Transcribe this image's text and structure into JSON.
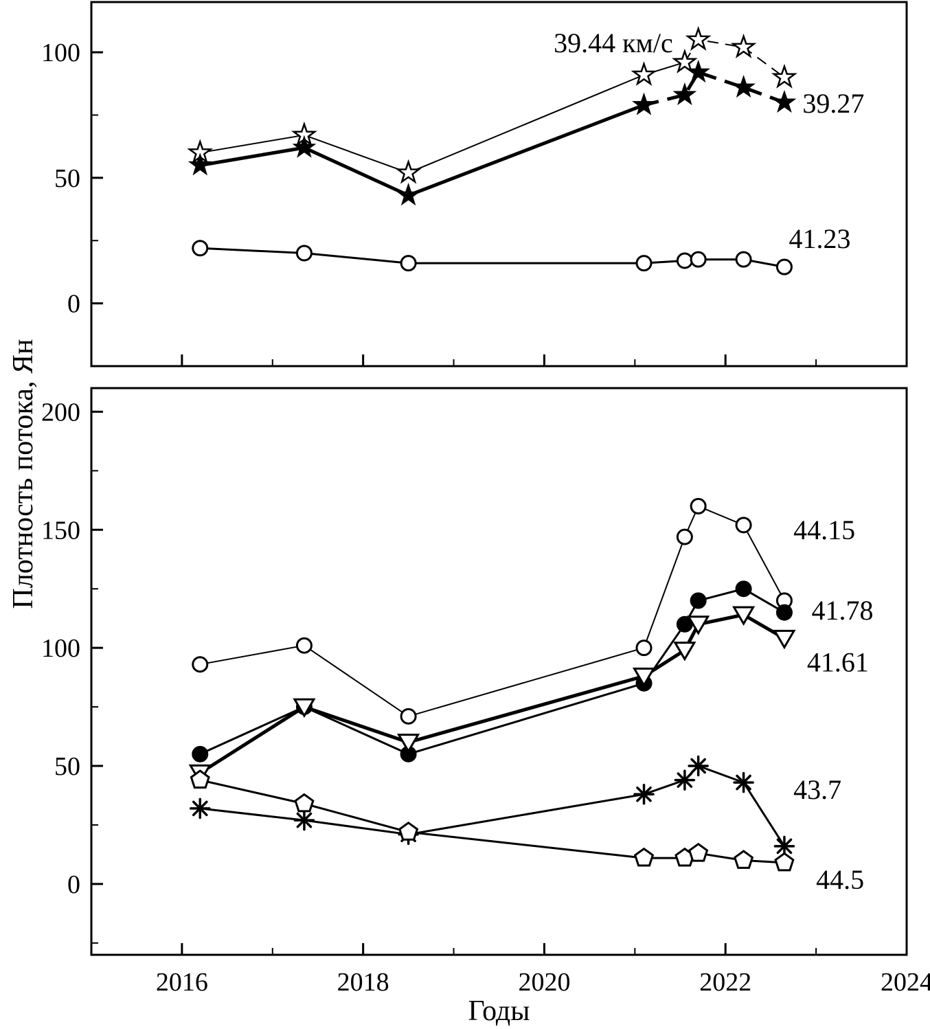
{
  "figure": {
    "xlabel": "Годы",
    "ylabel": "Плотность потока, Ян",
    "background": "#ffffff",
    "ink": "#000000"
  },
  "chart_data": [
    {
      "type": "line",
      "panel": "top",
      "x": [
        2016.2,
        2017.35,
        2018.5,
        2021.1,
        2021.55,
        2021.7,
        2022.2,
        2022.65
      ],
      "xlim": [
        2015,
        2024
      ],
      "ylim": [
        -25,
        120
      ],
      "yticks": [
        0,
        50,
        100
      ],
      "ytick_minor_step": 25,
      "xticks": [
        2016,
        2018,
        2020,
        2022,
        2024
      ],
      "xtick_minor_step": 1,
      "xtick_labels_visible": false,
      "grid": false,
      "series": [
        {
          "name": "39.44 км/с",
          "marker": "star-open",
          "line_width": 2,
          "dash_from": 4,
          "values": [
            60,
            67,
            52,
            91,
            96,
            105,
            102,
            90
          ]
        },
        {
          "name": "39.27",
          "marker": "star-filled",
          "line_width": 5,
          "dash_from": 3,
          "values": [
            55,
            62,
            43,
            79,
            83,
            92,
            86,
            80
          ]
        },
        {
          "name": "41.23",
          "marker": "circle-open",
          "line_width": 3,
          "dash_from": null,
          "values": [
            22,
            20,
            16,
            16,
            17,
            17.5,
            17.5,
            14.5
          ]
        }
      ],
      "annotations": [
        {
          "text": "39.44 км/с",
          "x": 2021.42,
          "y": 100,
          "anchor": "end"
        },
        {
          "text": "39.27",
          "x": 2022.85,
          "y": 76,
          "anchor": "start"
        },
        {
          "text": "41.23",
          "x": 2022.7,
          "y": 22,
          "anchor": "start"
        }
      ]
    },
    {
      "type": "line",
      "panel": "bottom",
      "x": [
        2016.2,
        2017.35,
        2018.5,
        2021.1,
        2021.55,
        2021.7,
        2022.2,
        2022.65
      ],
      "xlim": [
        2015,
        2024
      ],
      "ylim": [
        -30,
        210
      ],
      "yticks": [
        0,
        50,
        100,
        150,
        200
      ],
      "ytick_minor_step": 25,
      "xticks": [
        2016,
        2018,
        2020,
        2022,
        2024
      ],
      "xtick_minor_step": 1,
      "xtick_labels_visible": true,
      "grid": false,
      "series": [
        {
          "name": "44.15",
          "marker": "circle-open",
          "line_width": 2,
          "dash_from": null,
          "values": [
            93,
            101,
            71,
            100,
            147,
            160,
            152,
            120
          ]
        },
        {
          "name": "41.78",
          "marker": "circle-filled",
          "line_width": 3,
          "dash_from": null,
          "values": [
            55,
            75,
            55,
            85,
            110,
            120,
            125,
            115
          ]
        },
        {
          "name": "41.61",
          "marker": "triangle-open",
          "line_width": 5,
          "dash_from": null,
          "values": [
            47,
            75,
            60,
            88,
            99,
            110,
            114,
            104
          ]
        },
        {
          "name": "43.7",
          "marker": "asterisk",
          "line_width": 3,
          "dash_from": null,
          "values": [
            32,
            27,
            21,
            38,
            44,
            50,
            43,
            16
          ]
        },
        {
          "name": "44.5",
          "marker": "pentagon-open",
          "line_width": 3,
          "dash_from": null,
          "values": [
            44,
            34,
            22,
            11,
            11,
            13,
            10,
            9
          ]
        }
      ],
      "annotations": [
        {
          "text": "44.15",
          "x": 2022.75,
          "y": 146,
          "anchor": "start"
        },
        {
          "text": "41.78",
          "x": 2022.95,
          "y": 112,
          "anchor": "start"
        },
        {
          "text": "41.61",
          "x": 2022.9,
          "y": 90,
          "anchor": "start"
        },
        {
          "text": "43.7",
          "x": 2022.75,
          "y": 36,
          "anchor": "start"
        },
        {
          "text": "44.5",
          "x": 2023.0,
          "y": -2,
          "anchor": "start"
        }
      ]
    }
  ]
}
